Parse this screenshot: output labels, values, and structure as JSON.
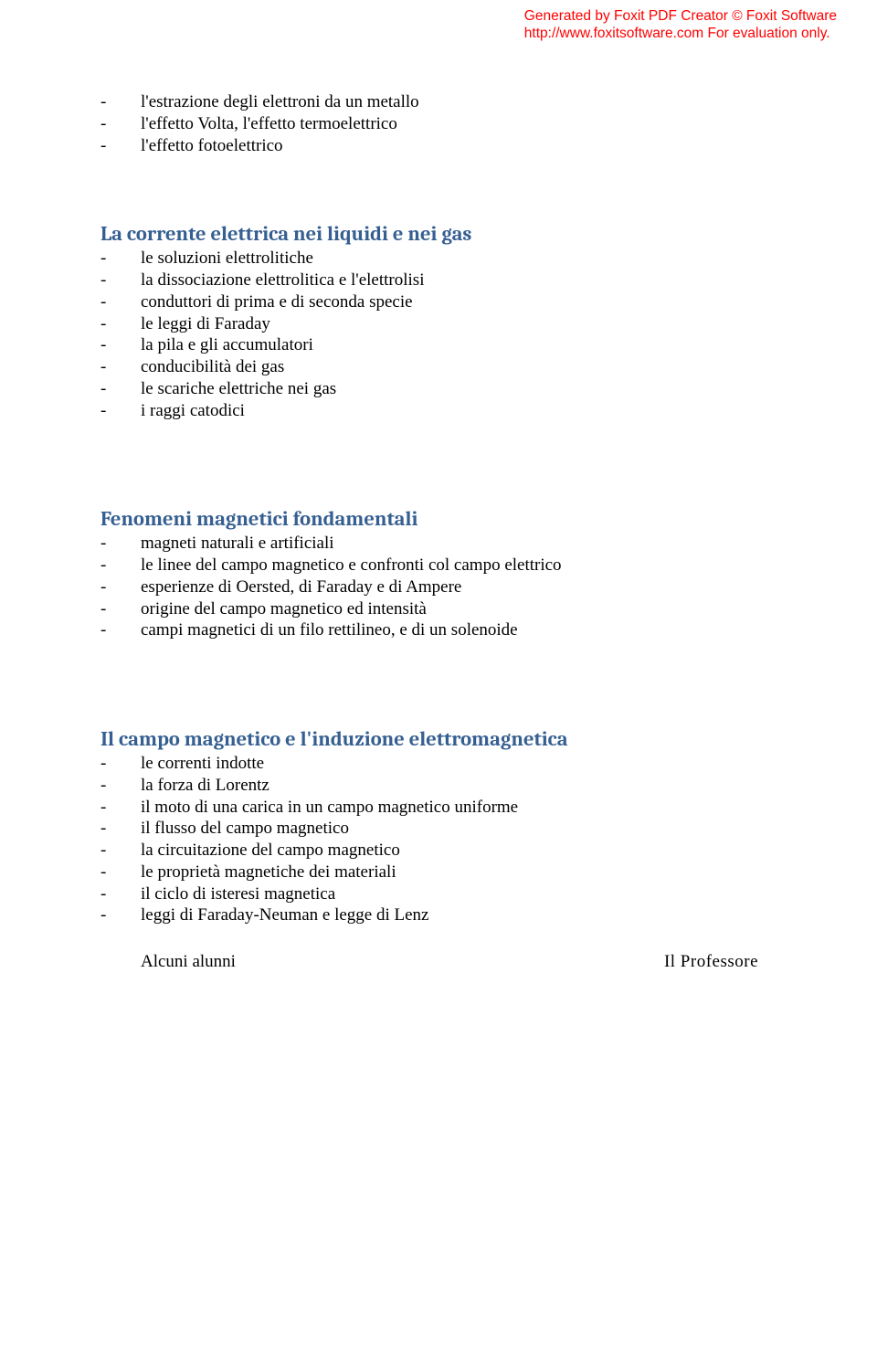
{
  "watermark": {
    "line1": "Generated by Foxit PDF Creator © Foxit Software",
    "line2": "http://www.foxitsoftware.com   For evaluation only.",
    "color": "#ff0000"
  },
  "lists": {
    "intro": [
      "l'estrazione degli elettroni da un metallo",
      "l'effetto Volta, l'effetto termoelettrico",
      "l'effetto fotoelettrico"
    ],
    "liquidi": [
      "le soluzioni elettrolitiche",
      "la dissociazione elettrolitica e l'elettrolisi",
      "conduttori di prima e di seconda specie",
      "le leggi di Faraday",
      "la pila e gli accumulatori",
      "conducibilità dei gas",
      "le scariche elettriche nei gas",
      "i raggi catodici"
    ],
    "magnetici": [
      "magneti naturali e artificiali",
      "le linee del campo magnetico e confronti col campo elettrico",
      "esperienze di Oersted,  di Faraday e di Ampere",
      "origine del campo magnetico ed intensità",
      "campi magnetici di un filo rettilineo, e di un solenoide"
    ],
    "induzione": [
      "le correnti indotte",
      "la forza di Lorentz",
      "il moto di una carica in un campo magnetico uniforme",
      "il flusso del campo magnetico",
      "la circuitazione del campo magnetico",
      "le proprietà magnetiche dei materiali",
      "il ciclo di isteresi magnetica",
      "leggi di Faraday-Neuman e legge di Lenz"
    ]
  },
  "headings": {
    "liquidi": "La corrente elettrica nei liquidi e nei gas",
    "magnetici": "Fenomeni magnetici fondamentali",
    "induzione": "Il campo magnetico e l'induzione elettromagnetica"
  },
  "footer": {
    "left": "Alcuni alunni",
    "right": "Il          Professore"
  },
  "colors": {
    "heading": "#365f91",
    "text": "#000000",
    "background": "#ffffff"
  },
  "typography": {
    "body_fontsize": 19,
    "heading_fontsize": 22.5,
    "watermark_fontsize": 15.5
  }
}
